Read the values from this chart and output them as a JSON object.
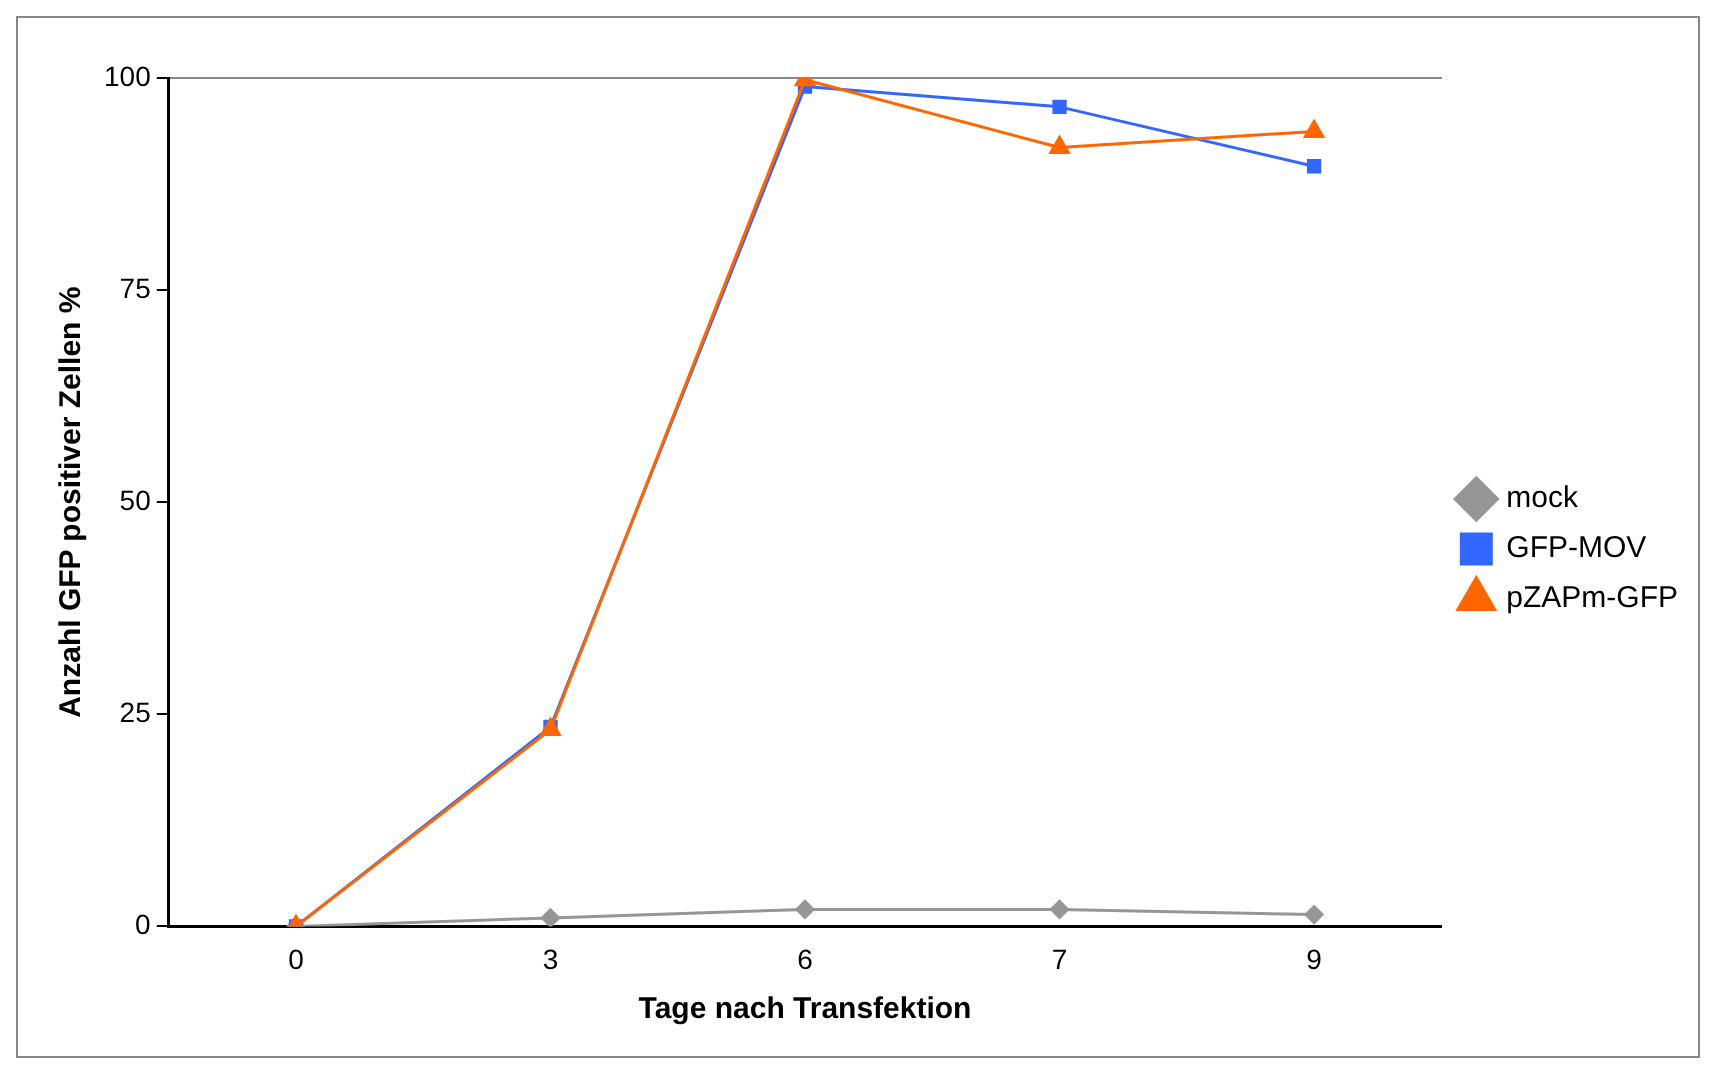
{
  "chart_data": {
    "type": "line",
    "xlabel": "Tage nach Transfektion",
    "ylabel": "Anzahl GFP positiver Zellen %",
    "categories": [
      "0",
      "3",
      "6",
      "7",
      "9"
    ],
    "series": [
      {
        "name": "mock",
        "color": "#969696",
        "marker": "diamond",
        "values": [
          0,
          1,
          2,
          2,
          1.4
        ]
      },
      {
        "name": "GFP-MOV",
        "color": "#3366ff",
        "marker": "square",
        "values": [
          0,
          23.5,
          99,
          96.6,
          89.6
        ]
      },
      {
        "name": "pZAPm-GFP",
        "color": "#ff6600",
        "marker": "triangle",
        "values": [
          0,
          23.2,
          99.8,
          91.8,
          93.7
        ]
      }
    ],
    "ylim": [
      0,
      100
    ],
    "yticks": [
      0,
      25,
      50,
      75,
      100
    ],
    "grid": false,
    "legend": "right",
    "line_style": "solid"
  }
}
